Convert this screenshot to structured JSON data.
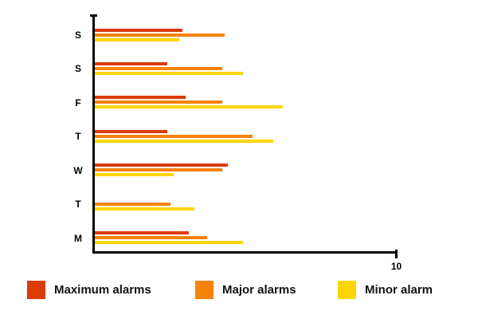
{
  "chart_data": {
    "type": "bar",
    "orientation": "horizontal",
    "title": "",
    "categories": [
      "S",
      "S",
      "F",
      "T",
      "W",
      "T",
      "M"
    ],
    "series": [
      {
        "name": "Maximum alarms",
        "color": "#DC3B04",
        "values": [
          2.9,
          2.4,
          3.0,
          2.4,
          4.4,
          0,
          3.1
        ]
      },
      {
        "name": "Major alarms",
        "color": "#F6820B",
        "values": [
          4.3,
          4.2,
          4.2,
          5.2,
          4.2,
          2.5,
          3.7
        ]
      },
      {
        "name": "Minor alarm",
        "color": "#FFD404",
        "values": [
          2.8,
          4.9,
          6.2,
          5.9,
          2.6,
          3.3,
          4.9
        ]
      }
    ],
    "xlim": [
      0,
      10
    ],
    "x_axis": {
      "max_label": "10"
    },
    "grid": false,
    "legend_position": "bottom",
    "axis_color": "#000000",
    "background_color": "#FFFFFF"
  }
}
